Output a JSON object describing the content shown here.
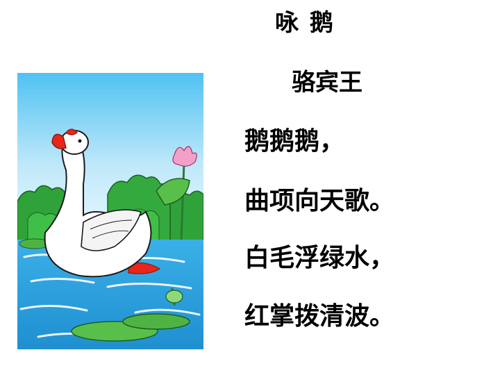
{
  "poem": {
    "title": "咏 鹅",
    "author": "骆宾王",
    "lines": [
      "鹅鹅鹅，",
      "曲项向天歌。",
      "白毛浮绿水，",
      "红掌拨清波。"
    ]
  },
  "colors": {
    "sky": "#5bc8f0",
    "water": "#2aa3e0",
    "foliage": "#2fa33a",
    "lily_pad": "#58c04a",
    "goose_body": "#ffffff",
    "goose_beak": "#e8261a",
    "lotus_flower": "#f3a0c8"
  }
}
